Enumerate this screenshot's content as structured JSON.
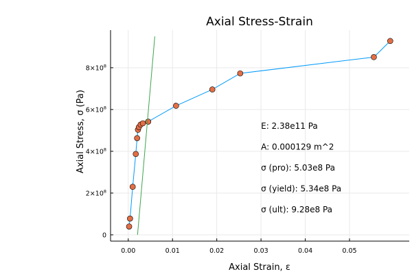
{
  "chart_data": {
    "type": "scatter",
    "title": "Axial Stress-Strain",
    "xlabel": "Axial Strain, ε",
    "ylabel": "Axial Stress, σ (Pa)",
    "xlim": [
      -0.004,
      0.0635
    ],
    "ylim": [
      -30000000.0,
      980000000.0
    ],
    "grid": true,
    "x_ticks": [
      {
        "value": 0.0,
        "label": "0.00"
      },
      {
        "value": 0.01,
        "label": "0.01"
      },
      {
        "value": 0.02,
        "label": "0.02"
      },
      {
        "value": 0.03,
        "label": "0.03"
      },
      {
        "value": 0.04,
        "label": "0.04"
      },
      {
        "value": 0.05,
        "label": "0.05"
      }
    ],
    "y_ticks": [
      {
        "value": 0,
        "base": "0",
        "exp": ""
      },
      {
        "value": 200000000.0,
        "base": "2×10",
        "exp": "8"
      },
      {
        "value": 400000000.0,
        "base": "4×10",
        "exp": "8"
      },
      {
        "value": 600000000.0,
        "base": "6×10",
        "exp": "8"
      },
      {
        "value": 800000000.0,
        "base": "8×10",
        "exp": "8"
      }
    ],
    "series": [
      {
        "style": "line",
        "color": "#009AFA",
        "x": [
          0.0002,
          0.0004,
          0.001,
          0.0017,
          0.002,
          0.0022,
          0.0024,
          0.0028,
          0.0033,
          0.0045,
          0.0108,
          0.019,
          0.0253,
          0.0555,
          0.0592
        ],
        "y": [
          40000000.0,
          78000000.0,
          230000000.0,
          387000000.0,
          463000000.0,
          503000000.0,
          516000000.0,
          528000000.0,
          534000000.0,
          542000000.0,
          618000000.0,
          696000000.0,
          773000000.0,
          851000000.0,
          928000000.0
        ]
      },
      {
        "style": "markers",
        "color": "#E26F46",
        "x": [
          0.0002,
          0.0004,
          0.001,
          0.0017,
          0.002,
          0.0022,
          0.0024,
          0.0028,
          0.0033,
          0.0045,
          0.0108,
          0.019,
          0.0253,
          0.0555,
          0.0592
        ],
        "y": [
          40000000.0,
          78000000.0,
          230000000.0,
          387000000.0,
          463000000.0,
          503000000.0,
          516000000.0,
          528000000.0,
          534000000.0,
          542000000.0,
          618000000.0,
          696000000.0,
          773000000.0,
          851000000.0,
          928000000.0
        ]
      },
      {
        "style": "line",
        "color": "#3DA44D",
        "x": [
          0.0021,
          0.006
        ],
        "y": [
          0,
          950000000.0
        ]
      }
    ],
    "annotations": [
      {
        "text": "E: 2.38e11 Pa",
        "x": 0.03,
        "y": 508000000.0
      },
      {
        "text": "A: 0.000129 m^2",
        "x": 0.03,
        "y": 408000000.0
      },
      {
        "text": "σ (pro): 5.03e8 Pa",
        "x": 0.03,
        "y": 308000000.0
      },
      {
        "text": "σ (yield): 5.34e8 Pa",
        "x": 0.03,
        "y": 208000000.0
      },
      {
        "text": "σ (ult): 9.28e8 Pa",
        "x": 0.03,
        "y": 108000000.0
      }
    ]
  }
}
